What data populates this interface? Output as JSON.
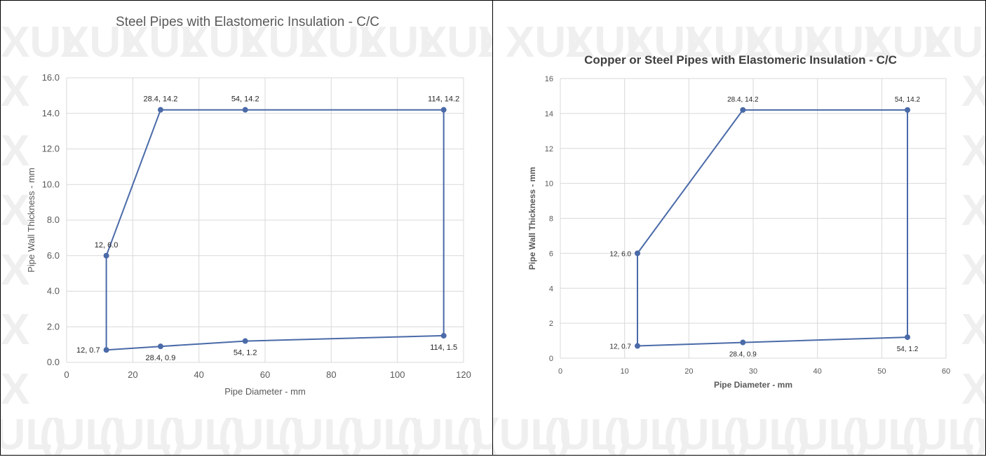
{
  "colors": {
    "series": "#4a6aa8",
    "grid": "#d9d9d9",
    "axis_text": "#595959",
    "title_left": "#595959",
    "title_right": "#404040",
    "border": "#000000",
    "watermark": "#efefef"
  },
  "watermark": {
    "text_top": "XUL",
    "text_bottom": "(UL)"
  },
  "chart_data": [
    {
      "type": "line",
      "title": "Steel Pipes with Elastomeric Insulation - C/C",
      "xlabel": "Pipe Diameter - mm",
      "ylabel": "Pipe Wall Thickness - mm",
      "xlim": [
        0,
        120
      ],
      "ylim": [
        0,
        16
      ],
      "xticks": [
        "0",
        "20",
        "40",
        "60",
        "80",
        "100",
        "120"
      ],
      "yticks": [
        "0.0",
        "2.0",
        "4.0",
        "6.0",
        "8.0",
        "10.0",
        "12.0",
        "14.0",
        "16.0"
      ],
      "grid": true,
      "series": [
        {
          "x": [
            12,
            12,
            28.4,
            54,
            114,
            114,
            54,
            28.4,
            12
          ],
          "y": [
            0.7,
            6.0,
            14.2,
            14.2,
            14.2,
            1.5,
            1.2,
            0.9,
            0.7
          ],
          "labels": [
            {
              "text": "12, 0.7",
              "pos": "left"
            },
            {
              "text": "12, 6.0",
              "pos": "above"
            },
            {
              "text": "28.4, 14.2",
              "pos": "above"
            },
            {
              "text": "54, 14.2",
              "pos": "above"
            },
            {
              "text": "114, 14.2",
              "pos": "above"
            },
            {
              "text": "114, 1.5",
              "pos": "below"
            },
            {
              "text": "54, 1.2",
              "pos": "below"
            },
            {
              "text": "28.4, 0.9",
              "pos": "below"
            }
          ]
        }
      ]
    },
    {
      "type": "line",
      "title": "Copper or Steel Pipes with Elastomeric Insulation - C/C",
      "xlabel": "Pipe Diameter - mm",
      "ylabel": "Pipe Wall Thickness - mm",
      "xlim": [
        0,
        60
      ],
      "ylim": [
        0,
        16
      ],
      "xticks": [
        "0",
        "10",
        "20",
        "30",
        "40",
        "50",
        "60"
      ],
      "yticks": [
        "0",
        "2",
        "4",
        "6",
        "8",
        "10",
        "12",
        "14",
        "16"
      ],
      "grid": true,
      "series": [
        {
          "x": [
            12,
            12,
            28.4,
            54,
            54,
            28.4,
            12
          ],
          "y": [
            0.7,
            6.0,
            14.2,
            14.2,
            1.2,
            0.9,
            0.7
          ],
          "labels": [
            {
              "text": "12, 0.7",
              "pos": "left"
            },
            {
              "text": "12, 6.0",
              "pos": "left"
            },
            {
              "text": "28.4, 14.2",
              "pos": "above"
            },
            {
              "text": "54, 14.2",
              "pos": "above"
            },
            {
              "text": "54, 1.2",
              "pos": "below"
            },
            {
              "text": "28.4, 0.9",
              "pos": "below"
            }
          ]
        }
      ]
    }
  ]
}
